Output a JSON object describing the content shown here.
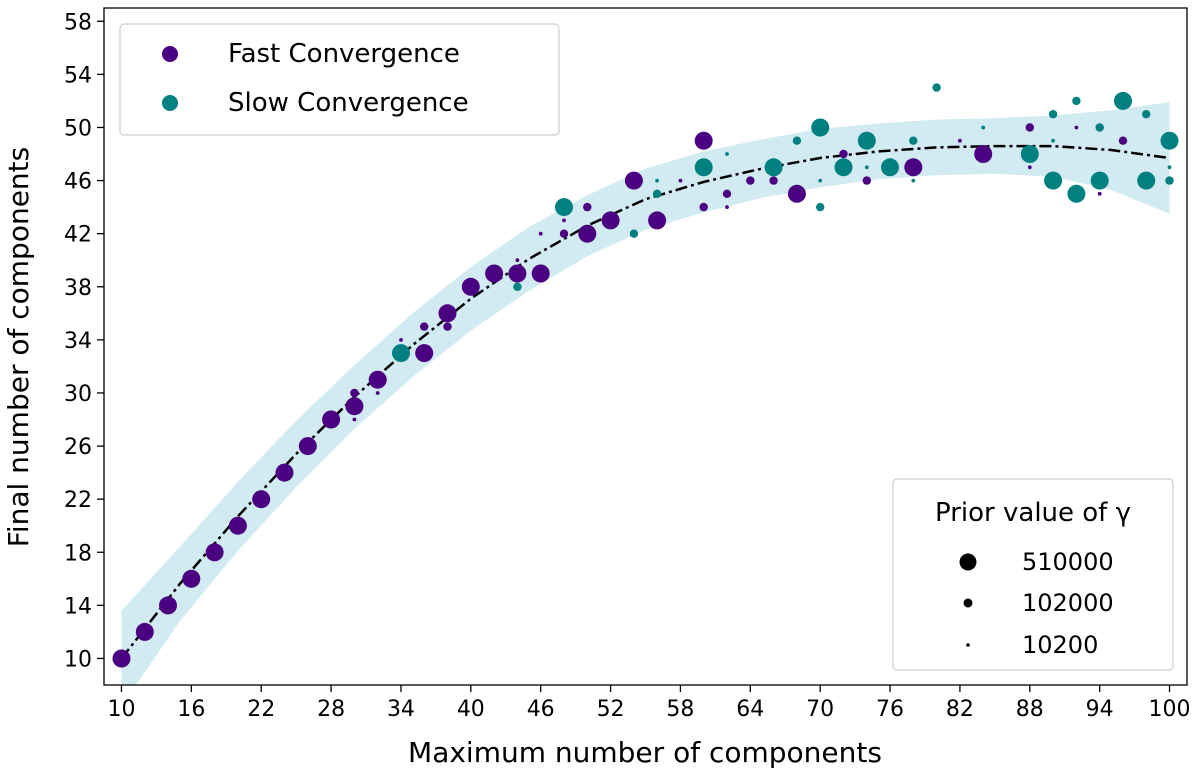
{
  "chart_data": {
    "type": "scatter",
    "xlabel": "Maximum number of components",
    "ylabel": "Final number of components",
    "xlim": [
      8.5,
      101.5
    ],
    "ylim": [
      8,
      59
    ],
    "xticks": [
      10,
      16,
      22,
      28,
      34,
      40,
      46,
      52,
      58,
      64,
      70,
      76,
      82,
      88,
      94,
      100
    ],
    "yticks": [
      10,
      14,
      18,
      22,
      26,
      30,
      34,
      38,
      42,
      46,
      50,
      54,
      58
    ],
    "grid": false,
    "series": [
      {
        "name": "Fast Convergence",
        "color": "#4b0082"
      },
      {
        "name": "Slow Convergence",
        "color": "#008080"
      }
    ],
    "legend": {
      "placement": "top-left"
    },
    "size_legend": {
      "title": "Prior value of γ",
      "placement": "bottom-right",
      "entries": [
        "510000",
        "102000",
        "10200"
      ]
    },
    "fit_curve": {
      "style": "dash-dot",
      "color": "#000000",
      "band_color": "#add8e6",
      "points": [
        [
          10,
          10
        ],
        [
          15,
          15.6
        ],
        [
          20,
          20.7
        ],
        [
          25,
          25.4
        ],
        [
          30,
          29.7
        ],
        [
          35,
          33.6
        ],
        [
          40,
          37.1
        ],
        [
          45,
          40.1
        ],
        [
          50,
          42.6
        ],
        [
          55,
          44.6
        ],
        [
          60,
          45.9
        ],
        [
          65,
          46.9
        ],
        [
          70,
          47.7
        ],
        [
          75,
          48.2
        ],
        [
          80,
          48.5
        ],
        [
          85,
          48.6
        ],
        [
          90,
          48.6
        ],
        [
          95,
          48.3
        ],
        [
          100,
          47.7
        ]
      ],
      "band": [
        [
          10,
          3.6
        ],
        [
          15,
          2.8
        ],
        [
          20,
          2.6
        ],
        [
          25,
          2.5
        ],
        [
          30,
          2.4
        ],
        [
          35,
          2.4
        ],
        [
          40,
          2.4
        ],
        [
          45,
          2.4
        ],
        [
          50,
          2.3
        ],
        [
          55,
          2.3
        ],
        [
          60,
          2.3
        ],
        [
          65,
          2.2
        ],
        [
          70,
          2.2
        ],
        [
          75,
          2.1
        ],
        [
          80,
          2.1
        ],
        [
          85,
          2.1
        ],
        [
          90,
          2.3
        ],
        [
          95,
          3.0
        ],
        [
          100,
          4.2
        ]
      ]
    },
    "points": [
      {
        "x": 10,
        "y": 10,
        "s": "L",
        "c": 0
      },
      {
        "x": 12,
        "y": 12,
        "s": "L",
        "c": 0
      },
      {
        "x": 14,
        "y": 14,
        "s": "L",
        "c": 0
      },
      {
        "x": 16,
        "y": 16,
        "s": "L",
        "c": 0
      },
      {
        "x": 18,
        "y": 18,
        "s": "L",
        "c": 0
      },
      {
        "x": 20,
        "y": 20,
        "s": "L",
        "c": 0
      },
      {
        "x": 22,
        "y": 22,
        "s": "L",
        "c": 0
      },
      {
        "x": 24,
        "y": 24,
        "s": "L",
        "c": 0
      },
      {
        "x": 26,
        "y": 26,
        "s": "L",
        "c": 0
      },
      {
        "x": 28,
        "y": 28,
        "s": "L",
        "c": 0
      },
      {
        "x": 30,
        "y": 29,
        "s": "L",
        "c": 0
      },
      {
        "x": 30,
        "y": 30,
        "s": "M",
        "c": 0
      },
      {
        "x": 30,
        "y": 28,
        "s": "S",
        "c": 0
      },
      {
        "x": 32,
        "y": 31,
        "s": "L",
        "c": 0
      },
      {
        "x": 32,
        "y": 30,
        "s": "S",
        "c": 0
      },
      {
        "x": 34,
        "y": 33,
        "s": "L",
        "c": 1
      },
      {
        "x": 34,
        "y": 34,
        "s": "S",
        "c": 0
      },
      {
        "x": 36,
        "y": 33,
        "s": "L",
        "c": 0
      },
      {
        "x": 36,
        "y": 35,
        "s": "M",
        "c": 0
      },
      {
        "x": 38,
        "y": 36,
        "s": "L",
        "c": 0
      },
      {
        "x": 38,
        "y": 35,
        "s": "M",
        "c": 0
      },
      {
        "x": 40,
        "y": 38,
        "s": "L",
        "c": 0
      },
      {
        "x": 42,
        "y": 39,
        "s": "L",
        "c": 0
      },
      {
        "x": 44,
        "y": 39,
        "s": "L",
        "c": 0
      },
      {
        "x": 44,
        "y": 38,
        "s": "M",
        "c": 1
      },
      {
        "x": 44,
        "y": 40,
        "s": "S",
        "c": 0
      },
      {
        "x": 46,
        "y": 39,
        "s": "L",
        "c": 0
      },
      {
        "x": 46,
        "y": 42,
        "s": "S",
        "c": 0
      },
      {
        "x": 48,
        "y": 44,
        "s": "L",
        "c": 1
      },
      {
        "x": 48,
        "y": 42,
        "s": "M",
        "c": 0
      },
      {
        "x": 48,
        "y": 43,
        "s": "S",
        "c": 0
      },
      {
        "x": 50,
        "y": 42,
        "s": "L",
        "c": 0
      },
      {
        "x": 50,
        "y": 44,
        "s": "M",
        "c": 0
      },
      {
        "x": 52,
        "y": 43,
        "s": "L",
        "c": 0
      },
      {
        "x": 54,
        "y": 46,
        "s": "L",
        "c": 0
      },
      {
        "x": 54,
        "y": 42,
        "s": "M",
        "c": 1
      },
      {
        "x": 56,
        "y": 43,
        "s": "L",
        "c": 0
      },
      {
        "x": 56,
        "y": 45,
        "s": "M",
        "c": 1
      },
      {
        "x": 56,
        "y": 46,
        "s": "S",
        "c": 1
      },
      {
        "x": 58,
        "y": 46,
        "s": "S",
        "c": 0
      },
      {
        "x": 60,
        "y": 49,
        "s": "L",
        "c": 0
      },
      {
        "x": 60,
        "y": 47,
        "s": "L",
        "c": 1
      },
      {
        "x": 60,
        "y": 44,
        "s": "M",
        "c": 0
      },
      {
        "x": 62,
        "y": 45,
        "s": "M",
        "c": 0
      },
      {
        "x": 62,
        "y": 44,
        "s": "S",
        "c": 0
      },
      {
        "x": 62,
        "y": 48,
        "s": "S",
        "c": 1
      },
      {
        "x": 64,
        "y": 46,
        "s": "M",
        "c": 0
      },
      {
        "x": 66,
        "y": 47,
        "s": "L",
        "c": 1
      },
      {
        "x": 66,
        "y": 46,
        "s": "M",
        "c": 0
      },
      {
        "x": 68,
        "y": 45,
        "s": "L",
        "c": 0
      },
      {
        "x": 68,
        "y": 49,
        "s": "M",
        "c": 1
      },
      {
        "x": 70,
        "y": 50,
        "s": "L",
        "c": 1
      },
      {
        "x": 70,
        "y": 44,
        "s": "M",
        "c": 1
      },
      {
        "x": 70,
        "y": 46,
        "s": "S",
        "c": 1
      },
      {
        "x": 72,
        "y": 47,
        "s": "L",
        "c": 1
      },
      {
        "x": 72,
        "y": 48,
        "s": "M",
        "c": 0
      },
      {
        "x": 74,
        "y": 49,
        "s": "L",
        "c": 1
      },
      {
        "x": 74,
        "y": 46,
        "s": "M",
        "c": 0
      },
      {
        "x": 74,
        "y": 47,
        "s": "S",
        "c": 1
      },
      {
        "x": 76,
        "y": 47,
        "s": "L",
        "c": 1
      },
      {
        "x": 78,
        "y": 47,
        "s": "L",
        "c": 0
      },
      {
        "x": 78,
        "y": 49,
        "s": "M",
        "c": 1
      },
      {
        "x": 78,
        "y": 46,
        "s": "S",
        "c": 1
      },
      {
        "x": 80,
        "y": 53,
        "s": "M",
        "c": 1
      },
      {
        "x": 82,
        "y": 49,
        "s": "S",
        "c": 0
      },
      {
        "x": 84,
        "y": 48,
        "s": "L",
        "c": 0
      },
      {
        "x": 84,
        "y": 50,
        "s": "S",
        "c": 1
      },
      {
        "x": 88,
        "y": 48,
        "s": "L",
        "c": 1
      },
      {
        "x": 88,
        "y": 50,
        "s": "M",
        "c": 0
      },
      {
        "x": 88,
        "y": 47,
        "s": "S",
        "c": 0
      },
      {
        "x": 90,
        "y": 46,
        "s": "L",
        "c": 1
      },
      {
        "x": 90,
        "y": 51,
        "s": "M",
        "c": 1
      },
      {
        "x": 90,
        "y": 49,
        "s": "S",
        "c": 1
      },
      {
        "x": 92,
        "y": 45,
        "s": "L",
        "c": 1
      },
      {
        "x": 92,
        "y": 52,
        "s": "M",
        "c": 1
      },
      {
        "x": 92,
        "y": 50,
        "s": "S",
        "c": 0
      },
      {
        "x": 94,
        "y": 46,
        "s": "L",
        "c": 1
      },
      {
        "x": 94,
        "y": 50,
        "s": "M",
        "c": 1
      },
      {
        "x": 94,
        "y": 45,
        "s": "S",
        "c": 0
      },
      {
        "x": 96,
        "y": 52,
        "s": "L",
        "c": 1
      },
      {
        "x": 96,
        "y": 49,
        "s": "M",
        "c": 0
      },
      {
        "x": 98,
        "y": 46,
        "s": "L",
        "c": 1
      },
      {
        "x": 98,
        "y": 51,
        "s": "M",
        "c": 1
      },
      {
        "x": 100,
        "y": 49,
        "s": "L",
        "c": 1
      },
      {
        "x": 100,
        "y": 46,
        "s": "M",
        "c": 1
      },
      {
        "x": 100,
        "y": 47,
        "s": "S",
        "c": 1
      }
    ]
  }
}
